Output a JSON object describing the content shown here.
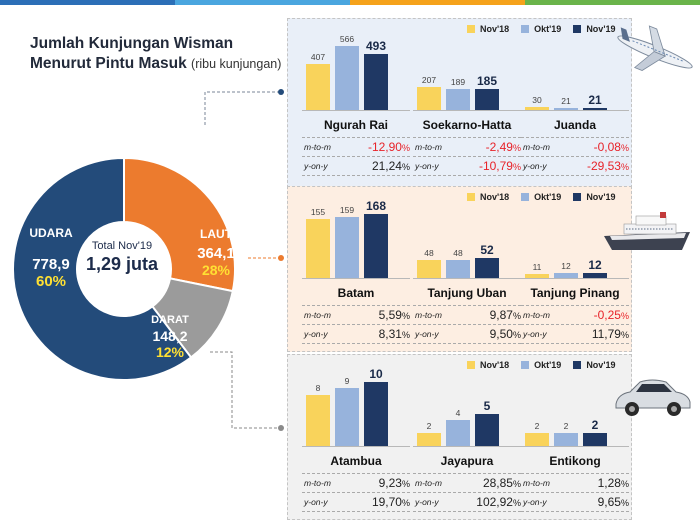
{
  "title": {
    "line1": "Jumlah Kunjungan Wisman",
    "line2": "Menurut Pintu Masuk",
    "unit": "(ribu kunjungan)"
  },
  "colors": {
    "nov18": "#f9d35b",
    "okt19": "#97b3dc",
    "nov19": "#1f3864",
    "udara": "#234b7a",
    "laut": "#ec7b2e",
    "darat": "#9b9b9b",
    "pct_yellow": "#ffe033",
    "topbar": [
      "#2c6fb7",
      "#4aa6df",
      "#f5a21b",
      "#6ab44a"
    ]
  },
  "legend": [
    "Nov'18",
    "Okt'19",
    "Nov'19"
  ],
  "row_labels": {
    "mtom": "m-to-m",
    "yony": "y-on-y",
    "pct": "%"
  },
  "chart_data": [
    {
      "type": "pie",
      "title": "Total Nov'19",
      "total_label": "1,29 juta",
      "slices": [
        {
          "name": "UDARA",
          "value": 778.9,
          "value_text": "778,9",
          "pct_text": "60%"
        },
        {
          "name": "LAUT",
          "value": 364.1,
          "value_text": "364,1",
          "pct_text": "28%"
        },
        {
          "name": "DARAT",
          "value": 148.2,
          "value_text": "148,2",
          "pct_text": "12%"
        }
      ]
    },
    {
      "type": "bar",
      "panel": "udara",
      "series": [
        "Nov'18",
        "Okt'19",
        "Nov'19"
      ],
      "groups": [
        {
          "name": "Ngurah Rai",
          "values": [
            407,
            566,
            493
          ],
          "mtom": "-12,90",
          "yony": "21,24"
        },
        {
          "name": "Soekarno-Hatta",
          "values": [
            207,
            189,
            185
          ],
          "mtom": "-2,49",
          "yony": "-10,79"
        },
        {
          "name": "Juanda",
          "values": [
            30,
            21,
            21
          ],
          "mtom": "-0,08",
          "yony": "-29,53"
        }
      ]
    },
    {
      "type": "bar",
      "panel": "laut",
      "series": [
        "Nov'18",
        "Okt'19",
        "Nov'19"
      ],
      "groups": [
        {
          "name": "Batam",
          "values": [
            155,
            159,
            168
          ],
          "mtom": "5,59",
          "yony": "8,31"
        },
        {
          "name": "Tanjung Uban",
          "values": [
            48,
            48,
            52
          ],
          "mtom": "9,87",
          "yony": "9,50"
        },
        {
          "name": "Tanjung Pinang",
          "values": [
            11,
            12,
            12
          ],
          "mtom": "-0,25",
          "yony": "11,79"
        }
      ]
    },
    {
      "type": "bar",
      "panel": "darat",
      "series": [
        "Nov'18",
        "Okt'19",
        "Nov'19"
      ],
      "groups": [
        {
          "name": "Atambua",
          "values": [
            8,
            9,
            10
          ],
          "mtom": "9,23",
          "yony": "19,70"
        },
        {
          "name": "Jayapura",
          "values": [
            2,
            4,
            5
          ],
          "mtom": "28,85",
          "yony": "102,92"
        },
        {
          "name": "Entikong",
          "values": [
            2,
            2,
            2
          ],
          "mtom": "1,28",
          "yony": "9,65"
        }
      ]
    }
  ]
}
